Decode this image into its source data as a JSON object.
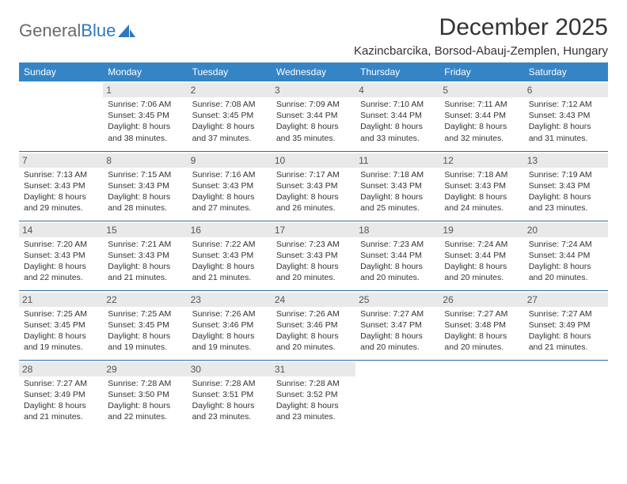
{
  "brand": {
    "part1": "General",
    "part2": "Blue"
  },
  "title": "December 2025",
  "location": "Kazincbarcika, Borsod-Abauj-Zemplen, Hungary",
  "colors": {
    "header_bg": "#3585c6",
    "header_text": "#ffffff",
    "row_divider": "#2f6da3",
    "daynum_bg": "#e9e9e9",
    "daynum_text": "#555555",
    "body_text": "#333333",
    "logo_gray": "#6a6a6a",
    "logo_blue": "#2f78bd",
    "page_bg": "#ffffff"
  },
  "fonts": {
    "title_size_pt": 22,
    "location_size_pt": 11,
    "header_size_pt": 9,
    "cell_size_pt": 8
  },
  "weekdays": [
    "Sunday",
    "Monday",
    "Tuesday",
    "Wednesday",
    "Thursday",
    "Friday",
    "Saturday"
  ],
  "weeks": [
    [
      {
        "day": "",
        "sunrise": "",
        "sunset": "",
        "daylight": ""
      },
      {
        "day": "1",
        "sunrise": "Sunrise: 7:06 AM",
        "sunset": "Sunset: 3:45 PM",
        "daylight": "Daylight: 8 hours and 38 minutes."
      },
      {
        "day": "2",
        "sunrise": "Sunrise: 7:08 AM",
        "sunset": "Sunset: 3:45 PM",
        "daylight": "Daylight: 8 hours and 37 minutes."
      },
      {
        "day": "3",
        "sunrise": "Sunrise: 7:09 AM",
        "sunset": "Sunset: 3:44 PM",
        "daylight": "Daylight: 8 hours and 35 minutes."
      },
      {
        "day": "4",
        "sunrise": "Sunrise: 7:10 AM",
        "sunset": "Sunset: 3:44 PM",
        "daylight": "Daylight: 8 hours and 33 minutes."
      },
      {
        "day": "5",
        "sunrise": "Sunrise: 7:11 AM",
        "sunset": "Sunset: 3:44 PM",
        "daylight": "Daylight: 8 hours and 32 minutes."
      },
      {
        "day": "6",
        "sunrise": "Sunrise: 7:12 AM",
        "sunset": "Sunset: 3:43 PM",
        "daylight": "Daylight: 8 hours and 31 minutes."
      }
    ],
    [
      {
        "day": "7",
        "sunrise": "Sunrise: 7:13 AM",
        "sunset": "Sunset: 3:43 PM",
        "daylight": "Daylight: 8 hours and 29 minutes."
      },
      {
        "day": "8",
        "sunrise": "Sunrise: 7:15 AM",
        "sunset": "Sunset: 3:43 PM",
        "daylight": "Daylight: 8 hours and 28 minutes."
      },
      {
        "day": "9",
        "sunrise": "Sunrise: 7:16 AM",
        "sunset": "Sunset: 3:43 PM",
        "daylight": "Daylight: 8 hours and 27 minutes."
      },
      {
        "day": "10",
        "sunrise": "Sunrise: 7:17 AM",
        "sunset": "Sunset: 3:43 PM",
        "daylight": "Daylight: 8 hours and 26 minutes."
      },
      {
        "day": "11",
        "sunrise": "Sunrise: 7:18 AM",
        "sunset": "Sunset: 3:43 PM",
        "daylight": "Daylight: 8 hours and 25 minutes."
      },
      {
        "day": "12",
        "sunrise": "Sunrise: 7:18 AM",
        "sunset": "Sunset: 3:43 PM",
        "daylight": "Daylight: 8 hours and 24 minutes."
      },
      {
        "day": "13",
        "sunrise": "Sunrise: 7:19 AM",
        "sunset": "Sunset: 3:43 PM",
        "daylight": "Daylight: 8 hours and 23 minutes."
      }
    ],
    [
      {
        "day": "14",
        "sunrise": "Sunrise: 7:20 AM",
        "sunset": "Sunset: 3:43 PM",
        "daylight": "Daylight: 8 hours and 22 minutes."
      },
      {
        "day": "15",
        "sunrise": "Sunrise: 7:21 AM",
        "sunset": "Sunset: 3:43 PM",
        "daylight": "Daylight: 8 hours and 21 minutes."
      },
      {
        "day": "16",
        "sunrise": "Sunrise: 7:22 AM",
        "sunset": "Sunset: 3:43 PM",
        "daylight": "Daylight: 8 hours and 21 minutes."
      },
      {
        "day": "17",
        "sunrise": "Sunrise: 7:23 AM",
        "sunset": "Sunset: 3:43 PM",
        "daylight": "Daylight: 8 hours and 20 minutes."
      },
      {
        "day": "18",
        "sunrise": "Sunrise: 7:23 AM",
        "sunset": "Sunset: 3:44 PM",
        "daylight": "Daylight: 8 hours and 20 minutes."
      },
      {
        "day": "19",
        "sunrise": "Sunrise: 7:24 AM",
        "sunset": "Sunset: 3:44 PM",
        "daylight": "Daylight: 8 hours and 20 minutes."
      },
      {
        "day": "20",
        "sunrise": "Sunrise: 7:24 AM",
        "sunset": "Sunset: 3:44 PM",
        "daylight": "Daylight: 8 hours and 20 minutes."
      }
    ],
    [
      {
        "day": "21",
        "sunrise": "Sunrise: 7:25 AM",
        "sunset": "Sunset: 3:45 PM",
        "daylight": "Daylight: 8 hours and 19 minutes."
      },
      {
        "day": "22",
        "sunrise": "Sunrise: 7:25 AM",
        "sunset": "Sunset: 3:45 PM",
        "daylight": "Daylight: 8 hours and 19 minutes."
      },
      {
        "day": "23",
        "sunrise": "Sunrise: 7:26 AM",
        "sunset": "Sunset: 3:46 PM",
        "daylight": "Daylight: 8 hours and 19 minutes."
      },
      {
        "day": "24",
        "sunrise": "Sunrise: 7:26 AM",
        "sunset": "Sunset: 3:46 PM",
        "daylight": "Daylight: 8 hours and 20 minutes."
      },
      {
        "day": "25",
        "sunrise": "Sunrise: 7:27 AM",
        "sunset": "Sunset: 3:47 PM",
        "daylight": "Daylight: 8 hours and 20 minutes."
      },
      {
        "day": "26",
        "sunrise": "Sunrise: 7:27 AM",
        "sunset": "Sunset: 3:48 PM",
        "daylight": "Daylight: 8 hours and 20 minutes."
      },
      {
        "day": "27",
        "sunrise": "Sunrise: 7:27 AM",
        "sunset": "Sunset: 3:49 PM",
        "daylight": "Daylight: 8 hours and 21 minutes."
      }
    ],
    [
      {
        "day": "28",
        "sunrise": "Sunrise: 7:27 AM",
        "sunset": "Sunset: 3:49 PM",
        "daylight": "Daylight: 8 hours and 21 minutes."
      },
      {
        "day": "29",
        "sunrise": "Sunrise: 7:28 AM",
        "sunset": "Sunset: 3:50 PM",
        "daylight": "Daylight: 8 hours and 22 minutes."
      },
      {
        "day": "30",
        "sunrise": "Sunrise: 7:28 AM",
        "sunset": "Sunset: 3:51 PM",
        "daylight": "Daylight: 8 hours and 23 minutes."
      },
      {
        "day": "31",
        "sunrise": "Sunrise: 7:28 AM",
        "sunset": "Sunset: 3:52 PM",
        "daylight": "Daylight: 8 hours and 23 minutes."
      },
      {
        "day": "",
        "sunrise": "",
        "sunset": "",
        "daylight": ""
      },
      {
        "day": "",
        "sunrise": "",
        "sunset": "",
        "daylight": ""
      },
      {
        "day": "",
        "sunrise": "",
        "sunset": "",
        "daylight": ""
      }
    ]
  ]
}
